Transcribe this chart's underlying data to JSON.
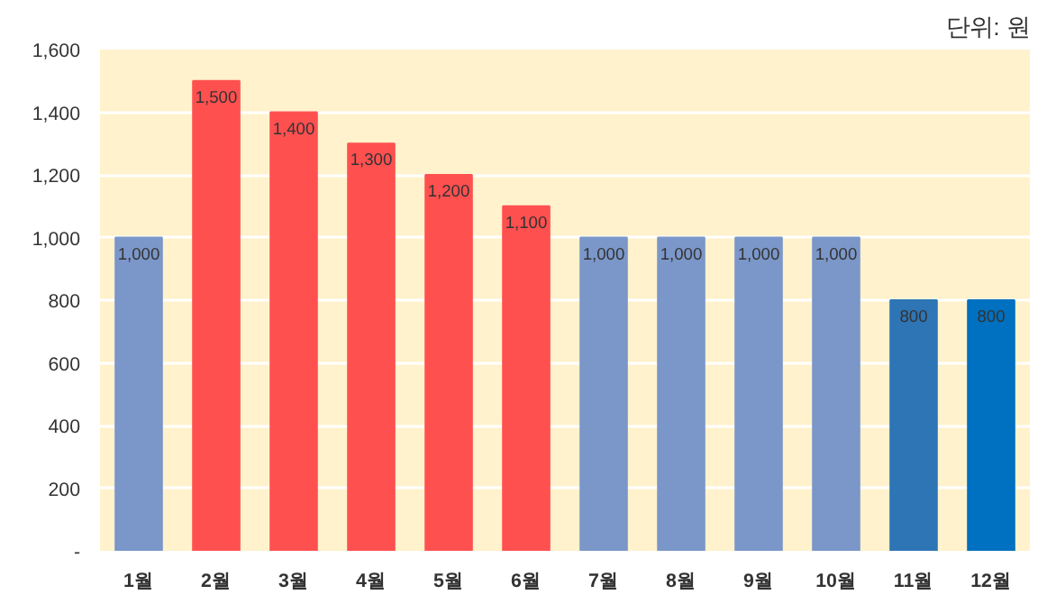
{
  "chart_data": {
    "type": "bar",
    "categories": [
      "1월",
      "2월",
      "3월",
      "4월",
      "5월",
      "6월",
      "7월",
      "8월",
      "9월",
      "10월",
      "11월",
      "12월"
    ],
    "values": [
      1000,
      1500,
      1400,
      1300,
      1200,
      1100,
      1000,
      1000,
      1000,
      1000,
      800,
      800
    ],
    "colors": [
      "#7b97c9",
      "#ff5050",
      "#ff5050",
      "#ff5050",
      "#ff5050",
      "#ff5050",
      "#7b97c9",
      "#7b97c9",
      "#7b97c9",
      "#7b97c9",
      "#2e75b6",
      "#0070c0"
    ],
    "ylim": [
      0,
      1600
    ],
    "yticks": [
      {
        "value": 0,
        "label": "-"
      },
      {
        "value": 200,
        "label": "200"
      },
      {
        "value": 400,
        "label": "400"
      },
      {
        "value": 600,
        "label": "600"
      },
      {
        "value": 800,
        "label": "800"
      },
      {
        "value": 1000,
        "label": "1,000"
      },
      {
        "value": 1200,
        "label": "1,200"
      },
      {
        "value": 1400,
        "label": "1,400"
      },
      {
        "value": 1600,
        "label": "1,600"
      }
    ],
    "value_labels": [
      "1,000",
      "1,500",
      "1,400",
      "1,300",
      "1,200",
      "1,100",
      "1,000",
      "1,000",
      "1,000",
      "1,000",
      "800",
      "800"
    ],
    "grid": "y",
    "annotations": [
      "단위: 원"
    ]
  }
}
